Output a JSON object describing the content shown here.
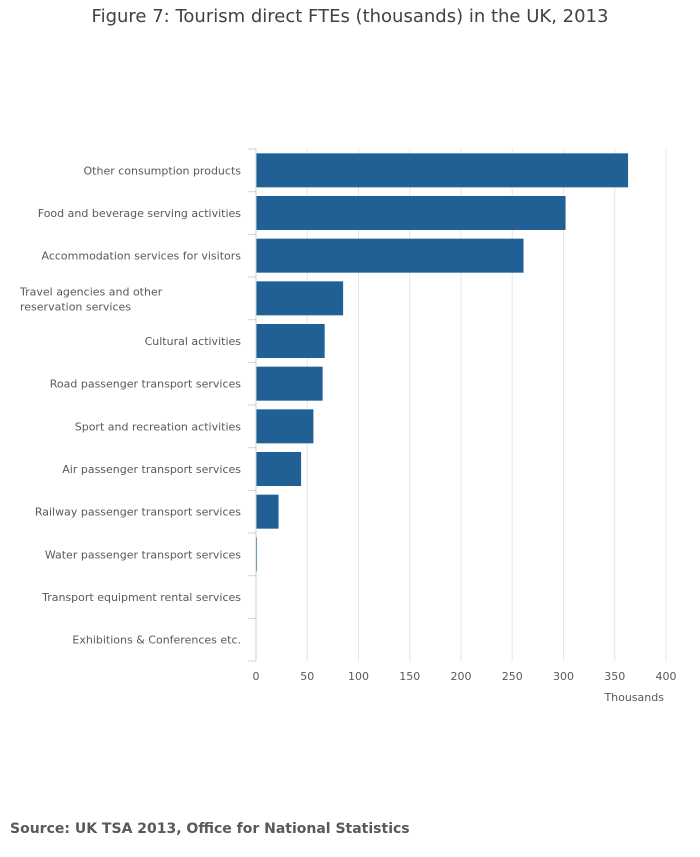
{
  "chart_data": {
    "type": "bar",
    "orientation": "horizontal",
    "title": "Figure 7: Tourism direct FTEs (thousands) in the UK, 2013",
    "xlabel": "Thousands",
    "ylabel": "",
    "xlim": [
      0,
      400
    ],
    "xticks": [
      0,
      50,
      100,
      150,
      200,
      250,
      300,
      350,
      400
    ],
    "grid": true,
    "categories": [
      "Other consumption products",
      "Food and beverage serving activities",
      "Accommodation services for visitors",
      "Travel agencies and other reservation services",
      "Cultural activities",
      "Road passenger transport services",
      "Sport and recreation activities",
      "Air passenger transport services",
      "Railway passenger transport services",
      "Water passenger transport services",
      "Transport equipment rental services",
      "Exhibitions & Conferences etc."
    ],
    "values": [
      363,
      302,
      261,
      85,
      67,
      65,
      56,
      44,
      22,
      1,
      0,
      0
    ],
    "bar_color": "#206095"
  },
  "source": "Source: UK TSA 2013, Office for National Statistics"
}
